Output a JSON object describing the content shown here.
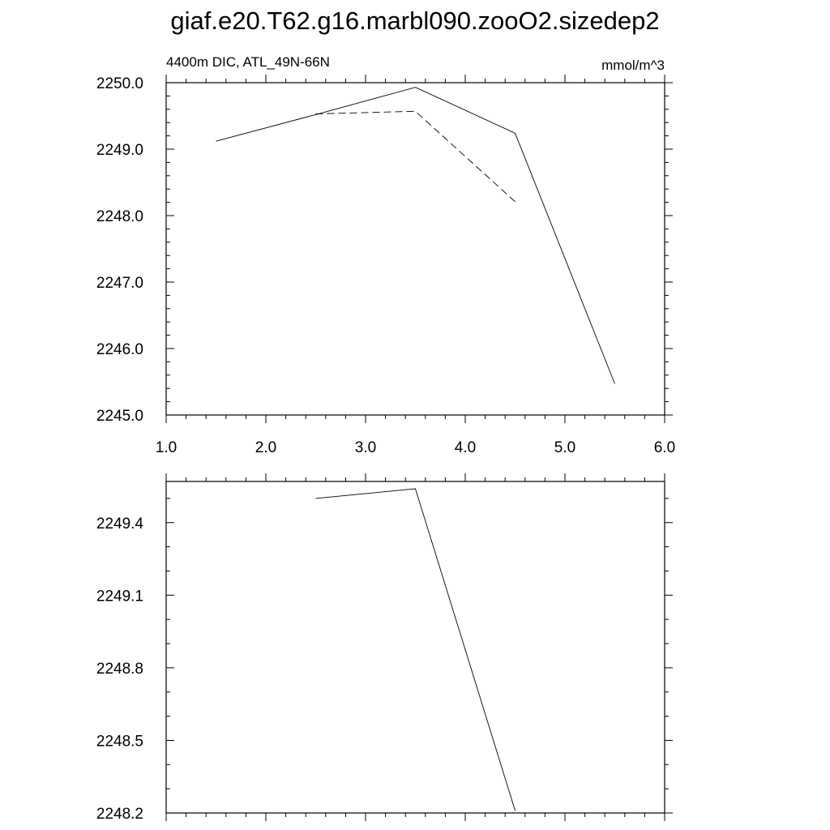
{
  "title": "giaf.e20.T62.g16.marbl090.zooO2.sizedep2",
  "chart_data": [
    {
      "type": "line",
      "left_label": "4400m DIC, ATL_49N-66N",
      "right_label": "mmol/m^3",
      "xlim": [
        1.0,
        6.0
      ],
      "ylim": [
        2245.0,
        2250.0
      ],
      "x_ticks": [
        "1.0",
        "2.0",
        "3.0",
        "4.0",
        "5.0",
        "6.0"
      ],
      "y_ticks": [
        "2245.0",
        "2246.0",
        "2247.0",
        "2248.0",
        "2249.0",
        "2250.0"
      ],
      "series": [
        {
          "style": "solid",
          "x": [
            1.5,
            2.5,
            3.5,
            4.5,
            5.5
          ],
          "y": [
            2249.12,
            2249.52,
            2249.93,
            2249.24,
            2245.47
          ]
        },
        {
          "style": "dashed",
          "x": [
            2.5,
            3.5,
            4.5
          ],
          "y": [
            2249.53,
            2249.57,
            2248.21
          ]
        }
      ]
    },
    {
      "type": "line",
      "xlim": [
        1.0,
        6.0
      ],
      "ylim": [
        2248.2,
        2249.57
      ],
      "x_ticks": [],
      "y_ticks": [
        "2248.2",
        "2248.5",
        "2248.8",
        "2249.1",
        "2249.4"
      ],
      "series": [
        {
          "style": "solid",
          "x": [
            2.5,
            3.5,
            4.5
          ],
          "y": [
            2249.5,
            2249.54,
            2248.21
          ]
        }
      ]
    }
  ]
}
